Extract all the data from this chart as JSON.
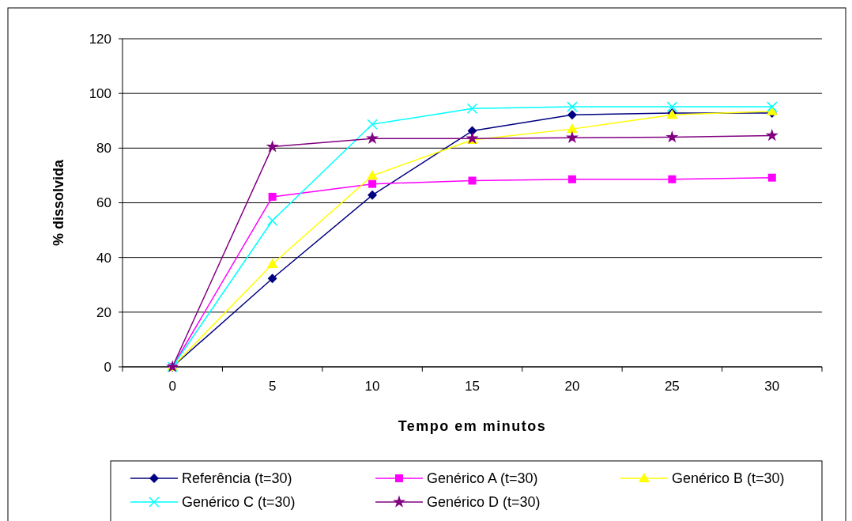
{
  "chart_data": {
    "type": "line",
    "xlabel": "Tempo em minutos",
    "ylabel": "% dissolvida",
    "categories": [
      "0",
      "5",
      "10",
      "15",
      "20",
      "25",
      "30"
    ],
    "ylim": [
      0,
      120
    ],
    "yticks": [
      0,
      20,
      40,
      60,
      80,
      100,
      120
    ],
    "grid": "y",
    "legend": "bottom",
    "line_style": "solid",
    "series": [
      {
        "name": "Referência (t=30)",
        "color": "#000080",
        "marker": "diamond",
        "values": [
          0,
          32.3,
          62.8,
          86.3,
          92.2,
          92.8,
          92.8
        ]
      },
      {
        "name": "Genérico A (t=30)",
        "color": "#ff00ff",
        "marker": "square",
        "values": [
          0,
          62.2,
          66.9,
          68.1,
          68.6,
          68.6,
          69.2
        ]
      },
      {
        "name": "Genérico B (t=30)",
        "color": "#ffff00",
        "marker": "triangle",
        "values": [
          0,
          37.6,
          69.9,
          83.0,
          87.0,
          92.2,
          93.5
        ]
      },
      {
        "name": "Genérico C (t=30)",
        "color": "#00ffff",
        "marker": "cross",
        "values": [
          0,
          53.5,
          88.7,
          94.5,
          95.1,
          95.1,
          95.1
        ]
      },
      {
        "name": "Genérico D (t=30)",
        "color": "#800080",
        "marker": "star",
        "values": [
          0,
          80.5,
          83.5,
          83.5,
          83.8,
          84.0,
          84.6
        ]
      }
    ]
  }
}
